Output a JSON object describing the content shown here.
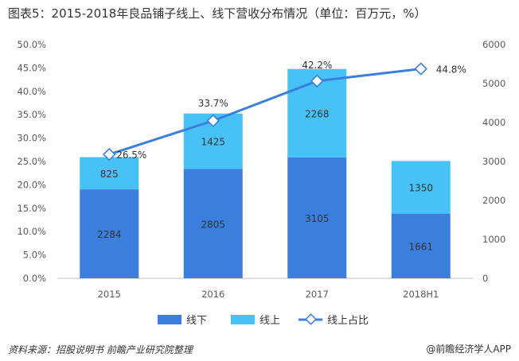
{
  "title": "图表5：2015-2018年良品铺子线上、线下营收分布情况（单位：百万元，%）",
  "footer": {
    "source": "资料来源：招股说明书 前瞻产业研究院整理",
    "brand": "@前瞻经济学人APP"
  },
  "chart_data": {
    "type": "bar",
    "stacked": true,
    "categories": [
      "2015",
      "2016",
      "2017",
      "2018H1"
    ],
    "series": [
      {
        "name": "线下",
        "values": [
          2284,
          2805,
          3105,
          1661
        ],
        "color": "#3b7fde",
        "axis": "right"
      },
      {
        "name": "线上",
        "values": [
          825,
          1425,
          2268,
          1350
        ],
        "color": "#46c2f7",
        "axis": "right"
      },
      {
        "name": "线上占比",
        "type": "line",
        "values": [
          26.5,
          33.7,
          42.2,
          44.8
        ],
        "labels": [
          "26.5%",
          "33.7%",
          "42.2%",
          "44.8%"
        ],
        "color": "#3b7fde",
        "axis": "left"
      }
    ],
    "y_left": {
      "min": 0,
      "max": 50,
      "step": 5,
      "ticks": [
        "0.0%",
        "5.0%",
        "10.0%",
        "15.0%",
        "20.0%",
        "25.0%",
        "30.0%",
        "35.0%",
        "40.0%",
        "45.0%",
        "50.0%"
      ]
    },
    "y_right": {
      "min": 0,
      "max": 6000,
      "step": 1000,
      "ticks": [
        "0",
        "1000",
        "2000",
        "3000",
        "4000",
        "5000",
        "6000"
      ]
    },
    "grid": false,
    "legend": "bottom"
  }
}
